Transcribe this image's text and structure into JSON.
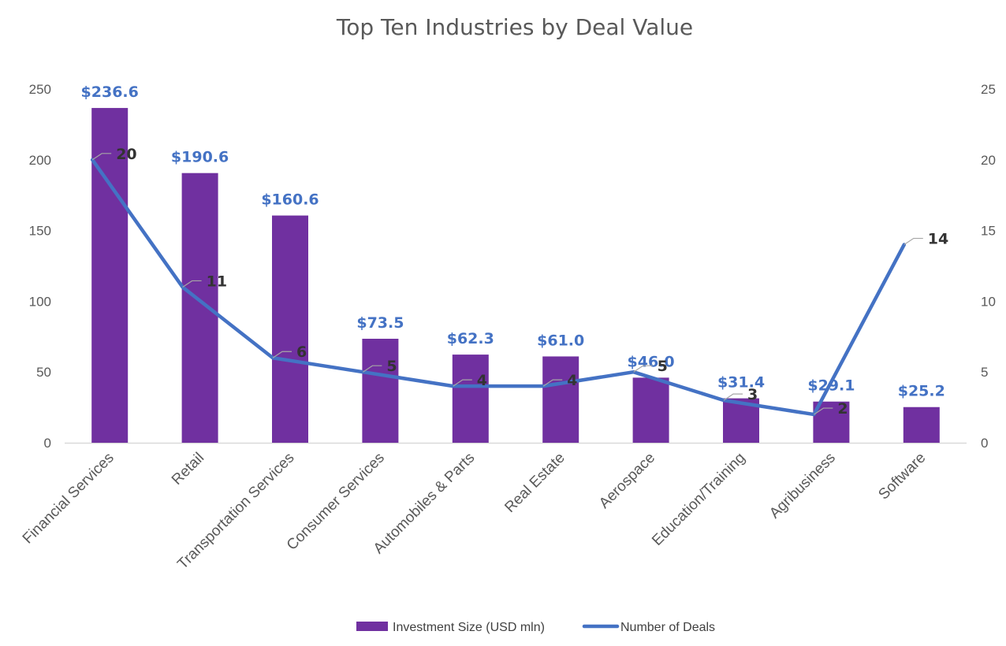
{
  "chart_data": {
    "type": "bar",
    "title": "Top Ten Industries by Deal Value",
    "categories": [
      "Financial Services",
      "Retail",
      "Transportation Services",
      "Consumer Services",
      "Automobiles & Parts",
      "Real Estate",
      "Aerospace",
      "Education/Training",
      "Agribusiness",
      "Software"
    ],
    "series": [
      {
        "name": "Investment Size (USD mln)",
        "type": "bar",
        "axis": "left",
        "color": "#7030A0",
        "values": [
          236.6,
          190.6,
          160.6,
          73.5,
          62.3,
          61.0,
          46.0,
          31.4,
          29.1,
          25.2
        ],
        "labels": [
          "$236.6",
          "$190.6",
          "$160.6",
          "$73.5",
          "$62.3",
          "$61.0",
          "$46.0",
          "$31.4",
          "$29.1",
          "$25.2"
        ]
      },
      {
        "name": "Number of Deals",
        "type": "line",
        "axis": "right",
        "color": "#4472C4",
        "values": [
          20,
          11,
          6,
          5,
          4,
          4,
          5,
          3,
          2,
          14
        ],
        "labels": [
          "20",
          "11",
          "6",
          "5",
          "4",
          "4",
          "5",
          "3",
          "2",
          "14"
        ]
      }
    ],
    "y_left": {
      "ylim": [
        0,
        250
      ],
      "ticks": [
        "0",
        "50",
        "100",
        "150",
        "200",
        "250"
      ]
    },
    "y_right": {
      "ylim": [
        0,
        25
      ],
      "ticks": [
        "0",
        "5",
        "10",
        "15",
        "20",
        "25"
      ]
    },
    "xlabel": "",
    "ylabel": "",
    "grid": false,
    "legend_position": "bottom",
    "bar_label_color": "#4472C4",
    "line_label_color": "#333333"
  }
}
